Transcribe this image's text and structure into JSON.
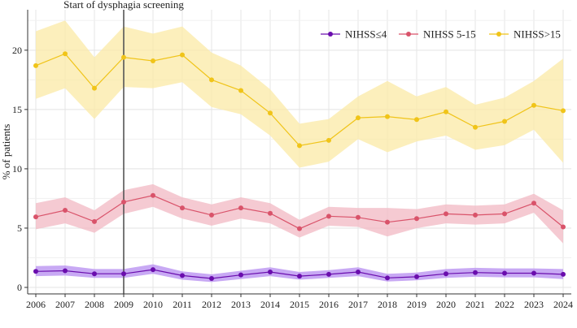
{
  "chart_data": {
    "type": "line",
    "x": [
      2006,
      2007,
      2008,
      2009,
      2010,
      2011,
      2012,
      2013,
      2014,
      2015,
      2016,
      2017,
      2018,
      2019,
      2020,
      2021,
      2022,
      2023,
      2024
    ],
    "ylabel": "% of patients",
    "xlabel": "",
    "xlim": [
      2006,
      2024
    ],
    "ylim": [
      0,
      23
    ],
    "yticks": [
      0,
      5,
      10,
      15,
      20
    ],
    "grid": true,
    "legend_position": "top-right",
    "annotation": {
      "text": "Start of dysphagia screening",
      "x": 2009
    },
    "series": [
      {
        "name": "NIHSS≤4",
        "color": "#6a0dad",
        "band_color": "#b68cf0",
        "values": [
          1.35,
          1.4,
          1.15,
          1.15,
          1.5,
          1.0,
          0.75,
          1.05,
          1.3,
          0.95,
          1.1,
          1.3,
          0.8,
          0.9,
          1.15,
          1.25,
          1.2,
          1.2,
          1.1
        ],
        "lower": [
          0.95,
          1.0,
          0.8,
          0.8,
          1.15,
          0.65,
          0.45,
          0.7,
          0.95,
          0.65,
          0.8,
          0.95,
          0.5,
          0.6,
          0.8,
          0.9,
          0.85,
          0.85,
          0.7
        ],
        "upper": [
          1.8,
          1.85,
          1.55,
          1.55,
          1.95,
          1.35,
          1.1,
          1.4,
          1.7,
          1.3,
          1.45,
          1.7,
          1.15,
          1.25,
          1.55,
          1.65,
          1.6,
          1.6,
          1.55
        ]
      },
      {
        "name": "NIHSS 5-15",
        "color": "#d9536a",
        "band_color": "#f2b8c3",
        "values": [
          5.95,
          6.5,
          5.55,
          7.2,
          7.75,
          6.7,
          6.1,
          6.7,
          6.25,
          4.95,
          6.0,
          5.9,
          5.5,
          5.8,
          6.2,
          6.1,
          6.2,
          7.1,
          5.1
        ],
        "lower": [
          4.9,
          5.4,
          4.6,
          6.2,
          6.8,
          5.8,
          5.2,
          5.8,
          5.4,
          4.2,
          5.2,
          5.1,
          4.3,
          5.0,
          5.4,
          5.3,
          5.4,
          6.3,
          3.7
        ],
        "upper": [
          7.1,
          7.6,
          6.5,
          8.2,
          8.7,
          7.6,
          7.0,
          7.6,
          7.1,
          5.7,
          6.8,
          6.7,
          6.7,
          6.6,
          7.0,
          6.9,
          7.0,
          7.9,
          6.5
        ]
      },
      {
        "name": "NIHSS>15",
        "color": "#f0c419",
        "band_color": "#fbeaa5",
        "values": [
          18.7,
          19.7,
          16.8,
          19.4,
          19.1,
          19.6,
          17.5,
          16.6,
          14.7,
          11.95,
          12.4,
          14.3,
          14.4,
          14.15,
          14.8,
          13.5,
          14.0,
          15.35,
          14.9
        ],
        "lower": [
          15.9,
          16.8,
          14.2,
          16.9,
          16.8,
          17.3,
          15.2,
          14.6,
          12.8,
          10.1,
          10.6,
          12.5,
          11.4,
          12.3,
          12.8,
          11.6,
          12.0,
          13.3,
          10.5
        ],
        "upper": [
          21.6,
          22.5,
          19.4,
          22.0,
          21.4,
          22.0,
          19.8,
          18.7,
          16.7,
          13.8,
          14.2,
          16.1,
          17.4,
          16.1,
          16.9,
          15.4,
          16.0,
          17.4,
          19.3
        ]
      }
    ]
  }
}
